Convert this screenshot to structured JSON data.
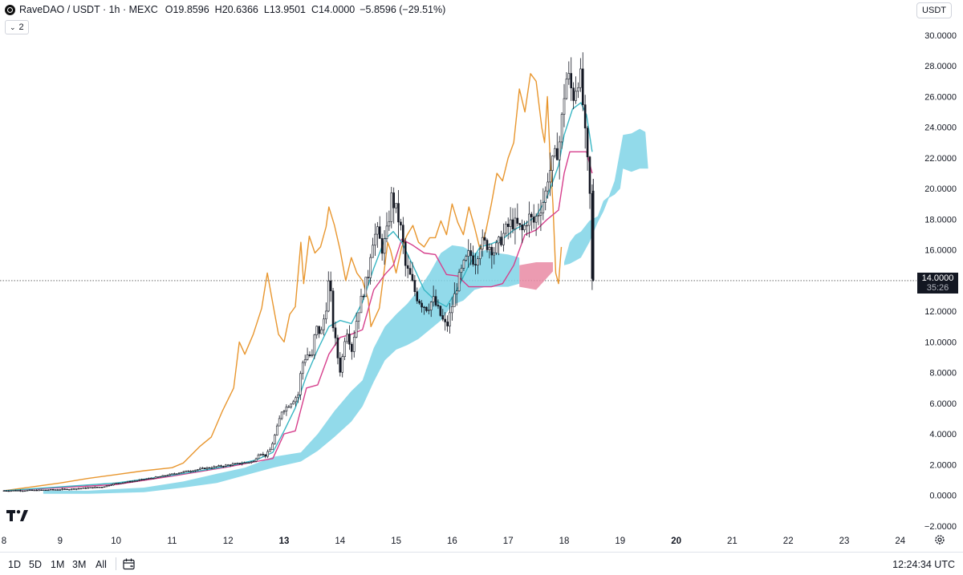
{
  "header": {
    "symbol_title": "RaveDAO / USDT · 1h · MEXC",
    "open_key": "O",
    "open_val": "19.8596",
    "high_key": "H",
    "high_val": "20.6366",
    "low_key": "L",
    "low_val": "13.9501",
    "close_key": "C",
    "close_val": "14.0000",
    "change": "−5.8596 (−29.51%)",
    "indicator_count": "2",
    "currency": "USDT"
  },
  "chart_data": {
    "type": "candlestick",
    "title": "RaveDAO / USDT · 1h · MEXC",
    "x_ticks": [
      {
        "label": "8",
        "day": 8,
        "bold": false
      },
      {
        "label": "9",
        "day": 9,
        "bold": false
      },
      {
        "label": "10",
        "day": 10,
        "bold": false
      },
      {
        "label": "11",
        "day": 11,
        "bold": false
      },
      {
        "label": "12",
        "day": 12,
        "bold": false
      },
      {
        "label": "13",
        "day": 13,
        "bold": true
      },
      {
        "label": "14",
        "day": 14,
        "bold": false
      },
      {
        "label": "15",
        "day": 15,
        "bold": false
      },
      {
        "label": "16",
        "day": 16,
        "bold": false
      },
      {
        "label": "17",
        "day": 17,
        "bold": false
      },
      {
        "label": "18",
        "day": 18,
        "bold": false
      },
      {
        "label": "19",
        "day": 19,
        "bold": false
      },
      {
        "label": "20",
        "day": 20,
        "bold": true
      },
      {
        "label": "21",
        "day": 21,
        "bold": false
      },
      {
        "label": "22",
        "day": 22,
        "bold": false
      },
      {
        "label": "23",
        "day": 23,
        "bold": false
      },
      {
        "label": "24",
        "day": 24,
        "bold": false
      }
    ],
    "y_ticks": [
      "30.0000",
      "28.0000",
      "26.0000",
      "24.0000",
      "22.0000",
      "20.0000",
      "18.0000",
      "16.0000",
      "14.0000",
      "12.0000",
      "10.0000",
      "8.0000",
      "6.0000",
      "4.0000",
      "2.0000",
      "0.0000",
      "−2.0000"
    ],
    "y_tick_values": [
      30,
      28,
      26,
      24,
      22,
      20,
      18,
      16,
      14,
      12,
      10,
      8,
      6,
      4,
      2,
      0,
      -2
    ],
    "current_price": {
      "value": 14.0,
      "label": "14.0000",
      "countdown": "35:26"
    },
    "colors": {
      "candle": "#131722",
      "lagging_line": "#e8962e",
      "conversion_line": "#38b6c4",
      "base_line": "#d63f8c",
      "cloud_bull": "#7fd3e6",
      "cloud_bear": "#e98aa3",
      "price_line": "#555555"
    },
    "price_path": [
      [
        8.0,
        0.3
      ],
      [
        8.6,
        0.32
      ],
      [
        9.2,
        0.4
      ],
      [
        9.8,
        0.55
      ],
      [
        10.0,
        0.75
      ],
      [
        10.4,
        0.95
      ],
      [
        10.8,
        1.2
      ],
      [
        11.2,
        1.5
      ],
      [
        11.6,
        1.75
      ],
      [
        12.0,
        1.95
      ],
      [
        12.2,
        2.05
      ],
      [
        12.5,
        2.2
      ],
      [
        12.6,
        2.8
      ],
      [
        12.7,
        2.55
      ],
      [
        12.8,
        3.0
      ],
      [
        12.9,
        4.2
      ],
      [
        13.0,
        5.5
      ],
      [
        13.1,
        5.8
      ],
      [
        13.2,
        6.2
      ],
      [
        13.3,
        6.6
      ],
      [
        13.35,
        8.5
      ],
      [
        13.45,
        9.2
      ],
      [
        13.55,
        9.0
      ],
      [
        13.6,
        11.0
      ],
      [
        13.7,
        10.5
      ],
      [
        13.8,
        12.5
      ],
      [
        13.85,
        14.5
      ],
      [
        13.9,
        11.5
      ],
      [
        14.0,
        9.0
      ],
      [
        14.05,
        8.0
      ],
      [
        14.15,
        11.0
      ],
      [
        14.25,
        9.5
      ],
      [
        14.35,
        11.8
      ],
      [
        14.45,
        13.2
      ],
      [
        14.55,
        14.5
      ],
      [
        14.6,
        16.5
      ],
      [
        14.7,
        17.2
      ],
      [
        14.8,
        16.0
      ],
      [
        14.9,
        17.5
      ],
      [
        14.95,
        19.5
      ],
      [
        15.05,
        18.5
      ],
      [
        15.15,
        17.0
      ],
      [
        15.2,
        15.0
      ],
      [
        15.3,
        14.2
      ],
      [
        15.4,
        13.0
      ],
      [
        15.5,
        12.5
      ],
      [
        15.6,
        12.2
      ],
      [
        15.7,
        12.8
      ],
      [
        15.8,
        12.0
      ],
      [
        15.9,
        11.2
      ],
      [
        15.95,
        11.0
      ],
      [
        16.05,
        12.5
      ],
      [
        16.15,
        14.0
      ],
      [
        16.25,
        15.0
      ],
      [
        16.35,
        15.8
      ],
      [
        16.45,
        15.2
      ],
      [
        16.55,
        16.5
      ],
      [
        16.7,
        16.3
      ],
      [
        16.8,
        15.9
      ],
      [
        16.9,
        16.6
      ],
      [
        17.0,
        17.3
      ],
      [
        17.1,
        17.8
      ],
      [
        17.2,
        17.6
      ],
      [
        17.3,
        17.2
      ],
      [
        17.4,
        18.2
      ],
      [
        17.5,
        17.8
      ],
      [
        17.6,
        18.6
      ],
      [
        17.7,
        19.5
      ],
      [
        17.75,
        20.8
      ],
      [
        17.85,
        21.8
      ],
      [
        17.95,
        22.8
      ],
      [
        18.0,
        24.5
      ],
      [
        18.05,
        26.5
      ],
      [
        18.1,
        27.5
      ],
      [
        18.2,
        26.0
      ],
      [
        18.3,
        27.4
      ],
      [
        18.35,
        27.0
      ],
      [
        18.4,
        24.0
      ],
      [
        18.45,
        22.0
      ],
      [
        18.5,
        19.5
      ],
      [
        18.52,
        14.0
      ]
    ],
    "lagging_span": [
      [
        8.0,
        0.3
      ],
      [
        9.0,
        0.8
      ],
      [
        9.5,
        1.1
      ],
      [
        10.0,
        1.35
      ],
      [
        10.5,
        1.6
      ],
      [
        11.0,
        1.8
      ],
      [
        11.2,
        2.1
      ],
      [
        11.5,
        3.2
      ],
      [
        11.7,
        3.8
      ],
      [
        11.9,
        5.5
      ],
      [
        12.1,
        7.0
      ],
      [
        12.2,
        10.0
      ],
      [
        12.3,
        9.2
      ],
      [
        12.45,
        10.5
      ],
      [
        12.6,
        12.2
      ],
      [
        12.7,
        14.5
      ],
      [
        12.8,
        12.5
      ],
      [
        12.9,
        10.5
      ],
      [
        13.0,
        10.0
      ],
      [
        13.1,
        11.8
      ],
      [
        13.2,
        12.3
      ],
      [
        13.3,
        16.5
      ],
      [
        13.35,
        13.8
      ],
      [
        13.45,
        16.9
      ],
      [
        13.55,
        15.8
      ],
      [
        13.65,
        16.2
      ],
      [
        13.75,
        17.5
      ],
      [
        13.8,
        18.8
      ],
      [
        13.9,
        17.6
      ],
      [
        14.0,
        16.0
      ],
      [
        14.1,
        14.0
      ],
      [
        14.2,
        15.5
      ],
      [
        14.3,
        14.5
      ],
      [
        14.4,
        14.0
      ],
      [
        14.5,
        12.8
      ],
      [
        14.55,
        11.0
      ],
      [
        14.7,
        12.2
      ],
      [
        14.8,
        15.0
      ],
      [
        14.85,
        16.5
      ],
      [
        14.9,
        16.0
      ],
      [
        15.0,
        14.5
      ],
      [
        15.1,
        16.2
      ],
      [
        15.2,
        17.0
      ],
      [
        15.3,
        17.6
      ],
      [
        15.4,
        16.5
      ],
      [
        15.5,
        16.2
      ],
      [
        15.6,
        16.8
      ],
      [
        15.7,
        16.8
      ],
      [
        15.8,
        17.9
      ],
      [
        15.9,
        17.0
      ],
      [
        16.0,
        19.0
      ],
      [
        16.1,
        17.8
      ],
      [
        16.2,
        17.0
      ],
      [
        16.3,
        18.8
      ],
      [
        16.4,
        17.5
      ],
      [
        16.5,
        16.0
      ],
      [
        16.6,
        17.2
      ],
      [
        16.7,
        19.0
      ],
      [
        16.8,
        21.0
      ],
      [
        16.9,
        20.5
      ],
      [
        17.0,
        22.0
      ],
      [
        17.1,
        23.0
      ],
      [
        17.2,
        26.5
      ],
      [
        17.3,
        25.0
      ],
      [
        17.4,
        27.5
      ],
      [
        17.5,
        27.0
      ],
      [
        17.6,
        24.0
      ],
      [
        17.65,
        23.0
      ],
      [
        17.7,
        26.0
      ],
      [
        17.75,
        22.0
      ],
      [
        17.8,
        19.0
      ],
      [
        17.85,
        14.5
      ],
      [
        17.9,
        13.8
      ],
      [
        17.95,
        16.2
      ]
    ],
    "conversion_line": [
      [
        8.0,
        0.3
      ],
      [
        10.0,
        0.8
      ],
      [
        11.0,
        1.3
      ],
      [
        12.0,
        1.9
      ],
      [
        12.5,
        2.3
      ],
      [
        12.8,
        2.8
      ],
      [
        13.0,
        4.2
      ],
      [
        13.2,
        5.7
      ],
      [
        13.4,
        7.8
      ],
      [
        13.6,
        9.5
      ],
      [
        13.8,
        11.0
      ],
      [
        14.0,
        11.4
      ],
      [
        14.2,
        11.2
      ],
      [
        14.4,
        12.6
      ],
      [
        14.6,
        14.8
      ],
      [
        14.8,
        16.7
      ],
      [
        14.95,
        17.2
      ],
      [
        15.1,
        16.5
      ],
      [
        15.3,
        15.0
      ],
      [
        15.5,
        13.4
      ],
      [
        15.7,
        12.7
      ],
      [
        15.9,
        12.3
      ],
      [
        16.1,
        13.5
      ],
      [
        16.3,
        15.0
      ],
      [
        16.5,
        16.2
      ],
      [
        16.7,
        16.4
      ],
      [
        16.9,
        16.7
      ],
      [
        17.1,
        17.3
      ],
      [
        17.3,
        17.7
      ],
      [
        17.5,
        18.2
      ],
      [
        17.7,
        19.5
      ],
      [
        17.9,
        21.5
      ],
      [
        18.0,
        23.5
      ],
      [
        18.15,
        25.2
      ],
      [
        18.3,
        25.6
      ],
      [
        18.4,
        24.8
      ],
      [
        18.5,
        22.4
      ]
    ],
    "base_line": [
      [
        8.0,
        0.3
      ],
      [
        10.0,
        0.7
      ],
      [
        11.0,
        1.25
      ],
      [
        12.0,
        1.85
      ],
      [
        12.5,
        2.2
      ],
      [
        12.8,
        2.4
      ],
      [
        13.0,
        4.0
      ],
      [
        13.2,
        4.2
      ],
      [
        13.4,
        7.0
      ],
      [
        13.6,
        7.2
      ],
      [
        13.8,
        9.2
      ],
      [
        14.0,
        10.3
      ],
      [
        14.2,
        10.5
      ],
      [
        14.4,
        10.8
      ],
      [
        14.6,
        13.4
      ],
      [
        14.8,
        14.4
      ],
      [
        14.95,
        15.0
      ],
      [
        15.1,
        16.7
      ],
      [
        15.3,
        16.3
      ],
      [
        15.5,
        15.8
      ],
      [
        15.7,
        15.7
      ],
      [
        15.9,
        14.4
      ],
      [
        16.1,
        14.3
      ],
      [
        16.3,
        13.6
      ],
      [
        16.5,
        13.6
      ],
      [
        16.7,
        13.6
      ],
      [
        16.9,
        13.8
      ],
      [
        17.1,
        15.0
      ],
      [
        17.3,
        17.0
      ],
      [
        17.5,
        17.3
      ],
      [
        17.7,
        18.0
      ],
      [
        17.9,
        18.6
      ],
      [
        18.0,
        21.0
      ],
      [
        18.1,
        22.4
      ],
      [
        18.4,
        22.4
      ],
      [
        18.5,
        21.0
      ]
    ],
    "cloud_bull": {
      "upper": [
        [
          8.7,
          0.3
        ],
        [
          9.5,
          0.3
        ],
        [
          10.5,
          0.5
        ],
        [
          11.2,
          0.9
        ],
        [
          11.8,
          1.4
        ],
        [
          12.3,
          1.8
        ],
        [
          12.8,
          2.5
        ],
        [
          13.3,
          2.8
        ],
        [
          13.6,
          4.0
        ],
        [
          13.9,
          5.5
        ],
        [
          14.2,
          6.8
        ],
        [
          14.4,
          7.5
        ],
        [
          14.6,
          9.6
        ],
        [
          14.8,
          11.0
        ],
        [
          15.0,
          11.8
        ],
        [
          15.2,
          12.5
        ],
        [
          15.4,
          13.4
        ],
        [
          15.6,
          14.5
        ],
        [
          15.8,
          15.8
        ],
        [
          16.0,
          16.3
        ],
        [
          16.2,
          16.2
        ],
        [
          16.4,
          15.8
        ],
        [
          16.6,
          16.0
        ],
        [
          16.8,
          15.8
        ],
        [
          17.0,
          15.7
        ],
        [
          17.2,
          15.5
        ]
      ],
      "lower": [
        [
          17.2,
          13.8
        ],
        [
          17.0,
          13.6
        ],
        [
          16.8,
          13.6
        ],
        [
          16.6,
          13.6
        ],
        [
          16.4,
          13.4
        ],
        [
          16.2,
          12.7
        ],
        [
          16.0,
          12.4
        ],
        [
          15.8,
          11.4
        ],
        [
          15.6,
          10.8
        ],
        [
          15.4,
          10.2
        ],
        [
          15.2,
          9.8
        ],
        [
          15.0,
          9.5
        ],
        [
          14.8,
          8.8
        ],
        [
          14.6,
          7.4
        ],
        [
          14.4,
          5.8
        ],
        [
          14.2,
          4.8
        ],
        [
          13.9,
          3.8
        ],
        [
          13.6,
          2.9
        ],
        [
          13.3,
          2.2
        ],
        [
          12.8,
          1.8
        ],
        [
          12.3,
          1.3
        ],
        [
          11.8,
          0.8
        ],
        [
          11.2,
          0.5
        ],
        [
          10.5,
          0.2
        ],
        [
          9.5,
          0.1
        ],
        [
          8.7,
          0.1
        ]
      ]
    },
    "cloud_bear": {
      "upper": [
        [
          17.2,
          15.0
        ],
        [
          17.5,
          15.2
        ],
        [
          17.8,
          15.2
        ]
      ],
      "lower": [
        [
          17.8,
          14.6
        ],
        [
          17.5,
          13.4
        ],
        [
          17.2,
          13.6
        ]
      ]
    },
    "cloud_future": {
      "upper": [
        [
          18.0,
          15.2
        ],
        [
          18.1,
          16.5
        ],
        [
          18.2,
          17.0
        ],
        [
          18.3,
          17.2
        ],
        [
          18.45,
          17.9
        ],
        [
          18.6,
          18.2
        ],
        [
          18.7,
          19.2
        ],
        [
          18.8,
          19.5
        ],
        [
          18.9,
          20.5
        ],
        [
          19.0,
          22.5
        ],
        [
          19.05,
          23.5
        ],
        [
          19.2,
          23.6
        ],
        [
          19.35,
          23.9
        ],
        [
          19.45,
          23.7
        ],
        [
          19.5,
          21.3
        ]
      ],
      "lower": [
        [
          19.5,
          21.3
        ],
        [
          19.35,
          21.3
        ],
        [
          19.2,
          21.1
        ],
        [
          19.05,
          21.3
        ],
        [
          19.0,
          20.0
        ],
        [
          18.9,
          19.6
        ],
        [
          18.8,
          19.4
        ],
        [
          18.7,
          18.5
        ],
        [
          18.6,
          17.8
        ],
        [
          18.45,
          16.5
        ],
        [
          18.3,
          15.5
        ],
        [
          18.2,
          15.3
        ],
        [
          18.1,
          15.1
        ],
        [
          18.0,
          15.0
        ]
      ]
    }
  },
  "footer": {
    "ranges": [
      "1D",
      "5D",
      "1M",
      "3M",
      "All"
    ],
    "time": "12:24:34 UTC"
  },
  "icons": {
    "logo": "tradingview-logo-icon",
    "settings": "gear-icon",
    "calendar": "calendar-range-icon"
  }
}
